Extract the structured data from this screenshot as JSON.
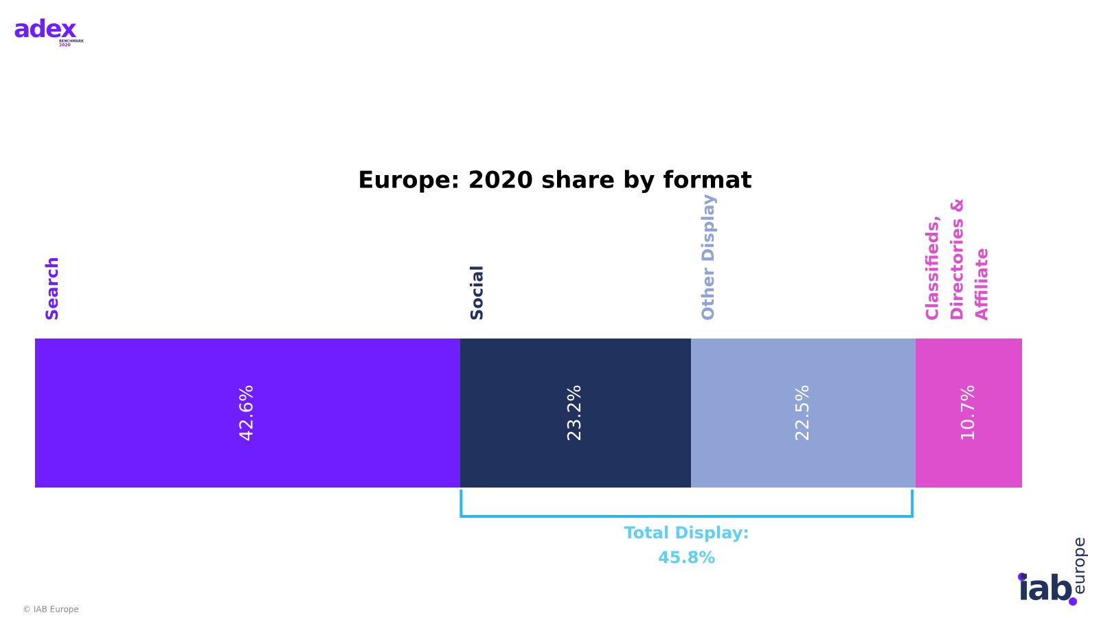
{
  "chart_data": {
    "type": "stacked-bar",
    "orientation": "horizontal",
    "title": "Europe: 2020 share by format",
    "series": [
      {
        "name": "Search",
        "color": "#6e1eff",
        "values": [
          42.6
        ],
        "value_labels": [
          "42.6%"
        ]
      },
      {
        "name": "Social",
        "color": "#22325e",
        "values": [
          23.2
        ],
        "value_labels": [
          "23.2%"
        ]
      },
      {
        "name": "Other Display",
        "color": "#8fa3d6",
        "values": [
          22.5
        ],
        "value_labels": [
          "22.5%"
        ]
      },
      {
        "name": "Classifieds, Directories & Affiliate",
        "color": "#dd4fcc",
        "values": [
          10.7
        ],
        "value_labels": [
          "10.7%"
        ]
      }
    ],
    "annotation": {
      "text": "Total Display:",
      "value": 45.8,
      "value_label": "45.8%",
      "color": "#5fd0f5"
    }
  },
  "logo": {
    "name": "adex",
    "sub": "BENCHMARK",
    "year": "2020"
  },
  "brand": {
    "name": "iab",
    "region": "europe"
  },
  "footer": "© IAB Europe"
}
